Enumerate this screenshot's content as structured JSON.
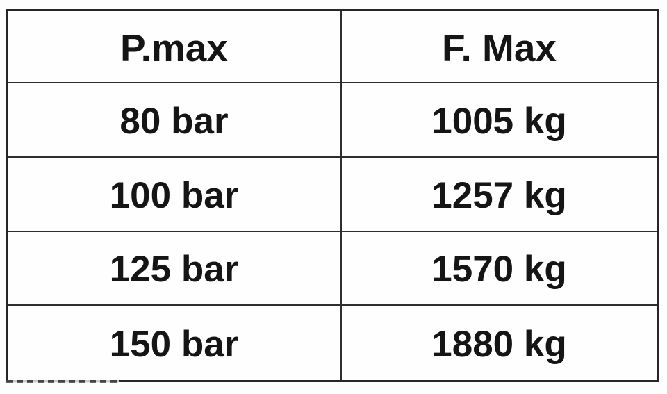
{
  "table": {
    "headers": {
      "pressure": "P.max",
      "force": "F. Max"
    },
    "rows": [
      {
        "pressure": "80 bar",
        "force": "1005 kg"
      },
      {
        "pressure": "100 bar",
        "force": "1257 kg"
      },
      {
        "pressure": "125 bar",
        "force": "1570 kg"
      },
      {
        "pressure": "150 bar",
        "force": "1880 kg"
      }
    ]
  },
  "colors": {
    "outer_border": "#262626",
    "grid_line": "#2e2e2e",
    "text": "#151515",
    "background": "#fefefe"
  },
  "chart_data": {
    "type": "table",
    "columns": [
      "P.max",
      "F. Max"
    ],
    "rows": [
      [
        "80 bar",
        "1005 kg"
      ],
      [
        "100 bar",
        "1257 kg"
      ],
      [
        "125 bar",
        "1570 kg"
      ],
      [
        "150 bar",
        "1880 kg"
      ]
    ],
    "pressures_bar": [
      80,
      100,
      125,
      150
    ],
    "forces_kg": [
      1005,
      1257,
      1570,
      1880
    ],
    "title": "",
    "xlabel": "P.max",
    "ylabel": "F. Max",
    "grid": true,
    "legend_position": "none"
  }
}
